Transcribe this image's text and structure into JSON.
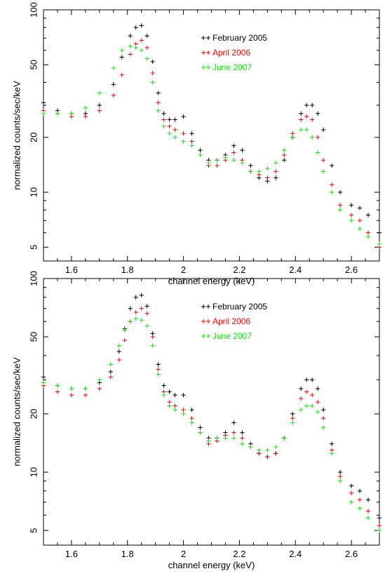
{
  "chart_data": [
    {
      "type": "scatter",
      "title": "",
      "xlabel": "channel energy (keV)",
      "ylabel": "normalized counts/sec/keV",
      "xlim": [
        1.5,
        2.7
      ],
      "ylim": [
        4.2,
        100
      ],
      "yscale": "log",
      "xticks": [
        1.6,
        1.8,
        2.0,
        2.2,
        2.4,
        2.6
      ],
      "xtick_labels": [
        "1.6",
        "1.8",
        "2",
        "2.2",
        "2.4",
        "2.6"
      ],
      "yticks": [
        5,
        10,
        20,
        50,
        100
      ],
      "ytick_labels": [
        "5",
        "10",
        "20",
        "50",
        "100"
      ],
      "legend_position": "top-center",
      "series": [
        {
          "name": "February 2005",
          "color": "#000000",
          "x": [
            1.5,
            1.55,
            1.6,
            1.65,
            1.7,
            1.75,
            1.78,
            1.81,
            1.83,
            1.85,
            1.87,
            1.89,
            1.91,
            1.93,
            1.95,
            1.97,
            2.0,
            2.03,
            2.06,
            2.09,
            2.12,
            2.15,
            2.18,
            2.21,
            2.24,
            2.27,
            2.3,
            2.33,
            2.36,
            2.39,
            2.42,
            2.44,
            2.46,
            2.48,
            2.5,
            2.53,
            2.56,
            2.6,
            2.63,
            2.66,
            2.7
          ],
          "y": [
            31,
            28,
            27,
            27,
            30,
            39,
            55,
            72,
            80,
            82,
            72,
            52,
            35,
            27,
            25,
            25,
            26,
            21,
            17,
            15,
            15,
            16,
            18,
            17,
            14,
            12,
            11.5,
            12,
            15,
            20,
            27,
            30,
            30,
            27,
            22,
            14,
            10,
            8.5,
            8.2,
            7.5,
            6
          ]
        },
        {
          "name": "April 2006",
          "color": "#ff0000",
          "x": [
            1.5,
            1.55,
            1.6,
            1.65,
            1.7,
            1.75,
            1.78,
            1.81,
            1.83,
            1.85,
            1.87,
            1.89,
            1.91,
            1.93,
            1.95,
            1.97,
            2.0,
            2.03,
            2.06,
            2.09,
            2.12,
            2.15,
            2.18,
            2.21,
            2.24,
            2.27,
            2.3,
            2.33,
            2.36,
            2.39,
            2.42,
            2.44,
            2.46,
            2.48,
            2.5,
            2.53,
            2.56,
            2.6,
            2.63,
            2.66,
            2.7
          ],
          "y": [
            28,
            27,
            26,
            26,
            28,
            34,
            44,
            57,
            65,
            68,
            62,
            45,
            31,
            25,
            23,
            22,
            21,
            19,
            16,
            14,
            14,
            15,
            16.5,
            15,
            13,
            12.5,
            12,
            13,
            16,
            21,
            25,
            26,
            25,
            20,
            15,
            11,
            8.5,
            7.5,
            7,
            6,
            5
          ]
        },
        {
          "name": "June 2007",
          "color": "#00ee00",
          "x": [
            1.5,
            1.55,
            1.6,
            1.65,
            1.7,
            1.75,
            1.78,
            1.81,
            1.83,
            1.85,
            1.87,
            1.89,
            1.91,
            1.93,
            1.95,
            1.97,
            2.0,
            2.03,
            2.06,
            2.09,
            2.12,
            2.15,
            2.18,
            2.21,
            2.24,
            2.27,
            2.3,
            2.33,
            2.36,
            2.39,
            2.42,
            2.44,
            2.46,
            2.48,
            2.5,
            2.53,
            2.56,
            2.6,
            2.63,
            2.66,
            2.7
          ],
          "y": [
            27,
            27,
            27,
            29,
            35,
            48,
            60,
            63,
            62,
            60,
            54,
            40,
            28,
            23,
            21,
            20,
            19,
            18,
            16,
            14.5,
            15,
            15.5,
            15,
            14.5,
            13,
            13,
            13.5,
            14.5,
            17,
            20,
            22,
            22,
            20,
            16.5,
            13,
            10,
            8,
            7,
            6.3,
            5.7,
            5.2
          ]
        }
      ]
    },
    {
      "type": "scatter",
      "title": "",
      "xlabel": "channel energy (keV)",
      "ylabel": "normalized counts/sec/keV",
      "xlim": [
        1.5,
        2.7
      ],
      "ylim": [
        4.2,
        100
      ],
      "yscale": "log",
      "xticks": [
        1.6,
        1.8,
        2.0,
        2.2,
        2.4,
        2.6
      ],
      "xtick_labels": [
        "1.6",
        "1.8",
        "2",
        "2.2",
        "2.4",
        "2.6"
      ],
      "yticks": [
        5,
        10,
        20,
        50,
        100
      ],
      "ytick_labels": [
        "5",
        "10",
        "20",
        "50",
        "100"
      ],
      "legend_position": "top-center",
      "series": [
        {
          "name": "February 2005",
          "color": "#000000",
          "x": [
            1.5,
            1.55,
            1.6,
            1.65,
            1.7,
            1.74,
            1.77,
            1.79,
            1.81,
            1.83,
            1.85,
            1.87,
            1.89,
            1.91,
            1.93,
            1.95,
            1.97,
            2.0,
            2.03,
            2.06,
            2.09,
            2.12,
            2.15,
            2.18,
            2.21,
            2.24,
            2.27,
            2.3,
            2.33,
            2.36,
            2.39,
            2.42,
            2.44,
            2.46,
            2.48,
            2.5,
            2.53,
            2.56,
            2.6,
            2.63,
            2.66,
            2.7
          ],
          "y": [
            31,
            28,
            27,
            27,
            29,
            33,
            42,
            55,
            70,
            80,
            82,
            72,
            52,
            36,
            28,
            26,
            25,
            25,
            21,
            17,
            15,
            15,
            16,
            18,
            16,
            14,
            12.5,
            12,
            12.5,
            15,
            20,
            27,
            30,
            30,
            27,
            21,
            14,
            10,
            8.5,
            8,
            7.2,
            5.8
          ]
        },
        {
          "name": "April 2006",
          "color": "#ff0000",
          "x": [
            1.5,
            1.55,
            1.6,
            1.65,
            1.7,
            1.74,
            1.77,
            1.79,
            1.81,
            1.83,
            1.85,
            1.87,
            1.89,
            1.91,
            1.93,
            1.95,
            1.97,
            2.0,
            2.03,
            2.06,
            2.09,
            2.12,
            2.15,
            2.18,
            2.21,
            2.24,
            2.27,
            2.3,
            2.33,
            2.36,
            2.39,
            2.42,
            2.44,
            2.46,
            2.48,
            2.5,
            2.53,
            2.56,
            2.6,
            2.63,
            2.66,
            2.7
          ],
          "y": [
            28,
            26,
            25,
            25,
            27,
            31,
            38,
            48,
            60,
            67,
            70,
            66,
            50,
            34,
            26,
            23,
            22,
            21,
            19,
            16,
            14,
            14.5,
            15.5,
            16,
            15,
            13.5,
            12.5,
            12,
            12.5,
            15,
            19,
            24,
            26,
            25,
            23,
            19,
            13,
            9.5,
            7.8,
            7.2,
            6.3,
            5.3
          ]
        },
        {
          "name": "June 2007",
          "color": "#00ee00",
          "x": [
            1.5,
            1.55,
            1.6,
            1.65,
            1.7,
            1.74,
            1.77,
            1.79,
            1.81,
            1.83,
            1.85,
            1.87,
            1.89,
            1.91,
            1.93,
            1.95,
            1.97,
            2.0,
            2.03,
            2.06,
            2.09,
            2.12,
            2.15,
            2.18,
            2.21,
            2.24,
            2.27,
            2.3,
            2.33,
            2.36,
            2.39,
            2.42,
            2.44,
            2.46,
            2.48,
            2.5,
            2.53,
            2.56,
            2.6,
            2.63,
            2.66,
            2.7
          ],
          "y": [
            29,
            28,
            27,
            27,
            30,
            36,
            45,
            54,
            60,
            62,
            61,
            57,
            45,
            32,
            25,
            22,
            21,
            20,
            18,
            16,
            14.5,
            15,
            15,
            15,
            14,
            13.5,
            13,
            13,
            13.5,
            15,
            18,
            21,
            22,
            22,
            20.5,
            17,
            12.5,
            9,
            7,
            6.5,
            5.8,
            5
          ]
        }
      ]
    }
  ]
}
